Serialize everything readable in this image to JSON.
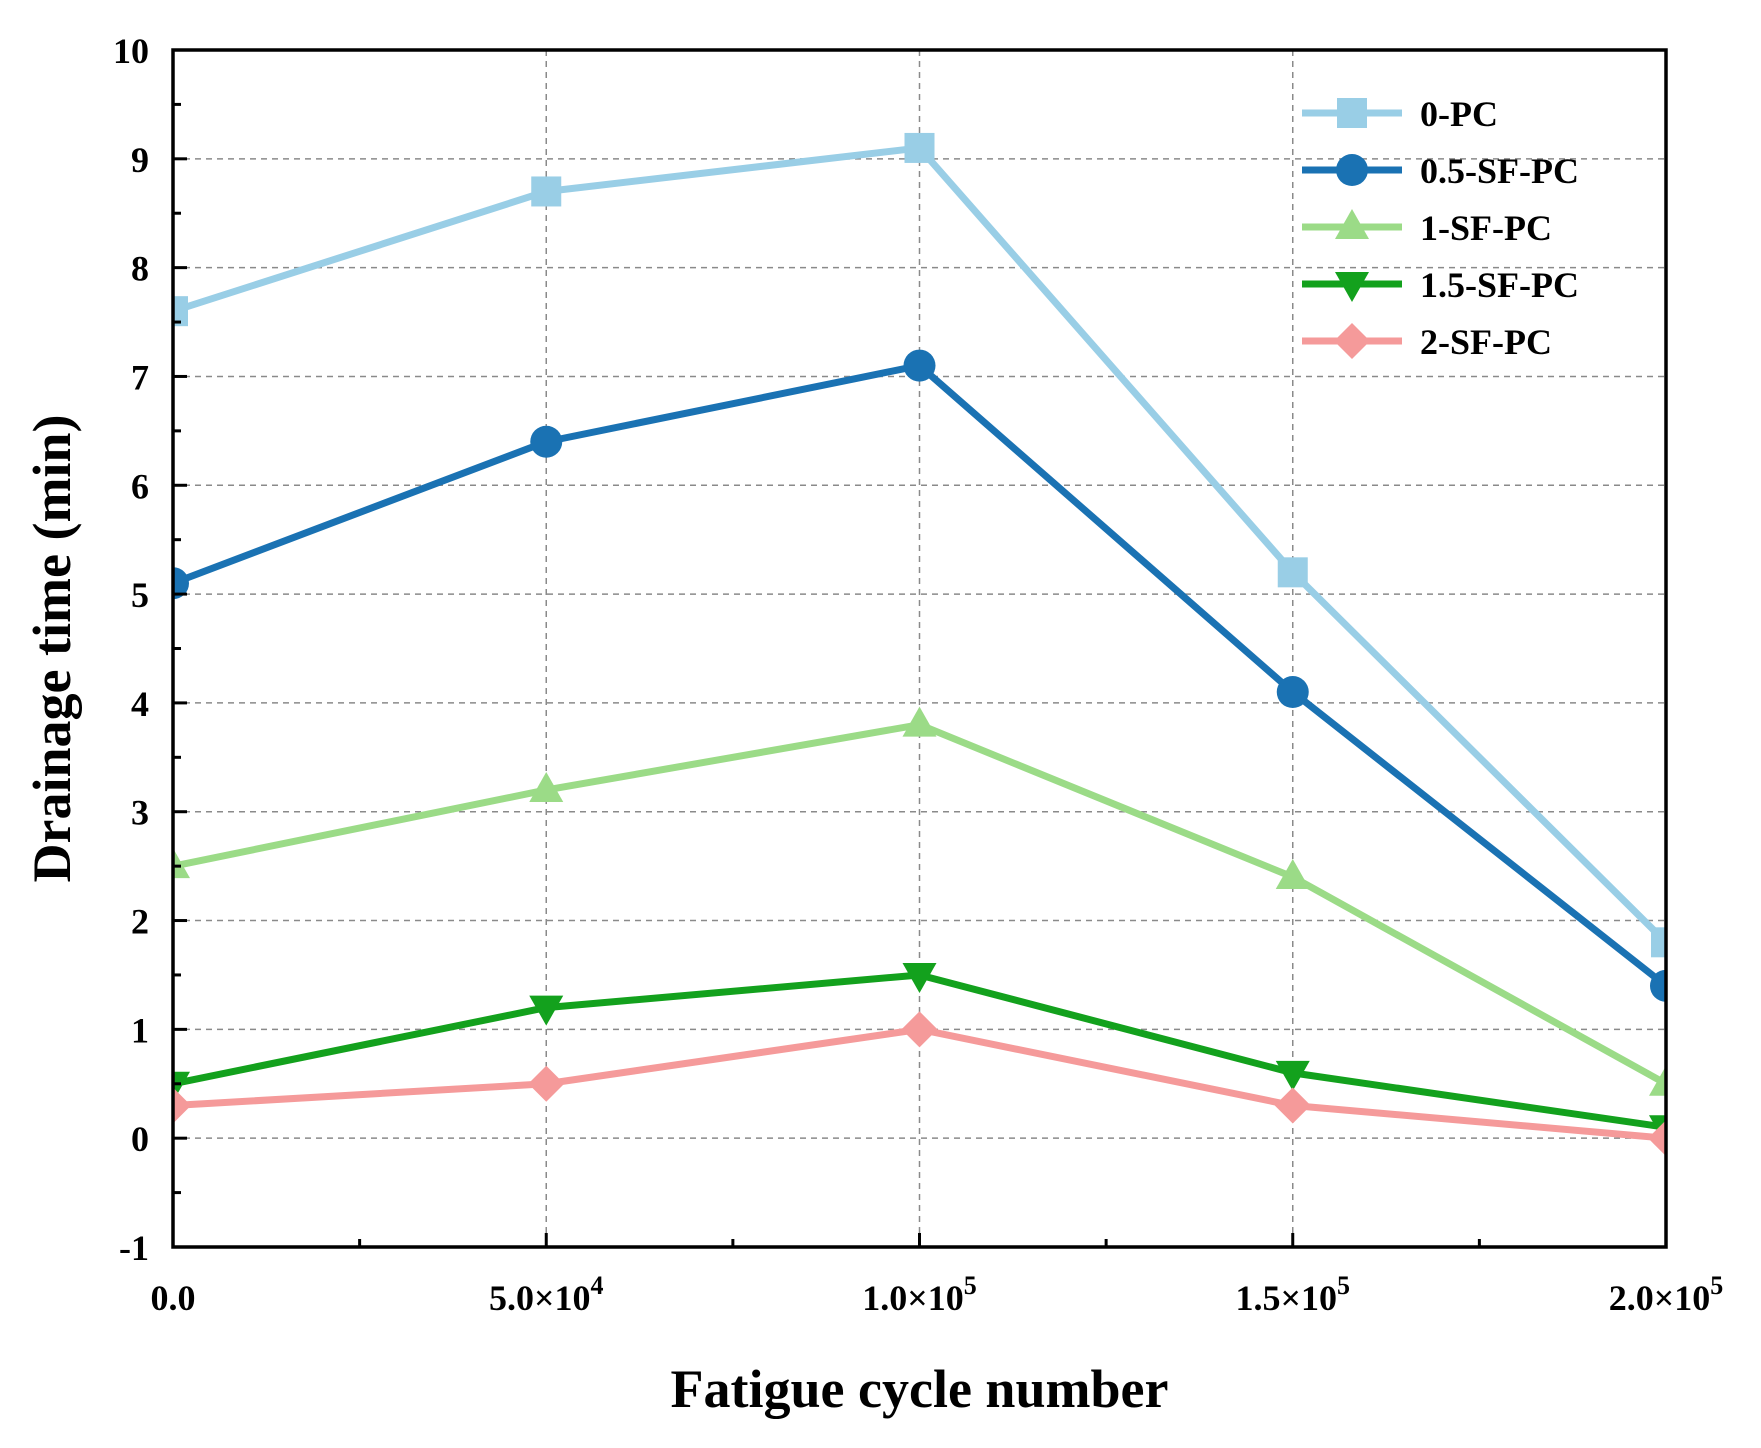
{
  "chart_data": {
    "type": "line",
    "title": "",
    "xlabel": "Fatigue cycle number",
    "ylabel": "Drainage time (min)",
    "x": [
      0,
      50000,
      100000,
      150000,
      200000
    ],
    "xlim": [
      0,
      200000
    ],
    "ylim": [
      -1,
      10
    ],
    "x_ticks": [
      {
        "value": 0,
        "mantissa": "0.0",
        "times": "",
        "exponent": ""
      },
      {
        "value": 50000,
        "mantissa": "5.0",
        "times": "×10",
        "exponent": "4"
      },
      {
        "value": 100000,
        "mantissa": "1.0",
        "times": "×10",
        "exponent": "5"
      },
      {
        "value": 150000,
        "mantissa": "1.5",
        "times": "×10",
        "exponent": "5"
      },
      {
        "value": 200000,
        "mantissa": "2.0",
        "times": "×10",
        "exponent": "5"
      }
    ],
    "y_ticks": [
      "-1",
      "0",
      "1",
      "2",
      "3",
      "4",
      "5",
      "6",
      "7",
      "8",
      "9",
      "10"
    ],
    "grid": true,
    "legend_position": "top-right",
    "series": [
      {
        "name": "0-PC",
        "color": "#99cee6",
        "marker": "square",
        "values": [
          7.6,
          8.7,
          9.1,
          5.2,
          1.8
        ]
      },
      {
        "name": "0.5-SF-PC",
        "color": "#1a72b3",
        "marker": "circle",
        "values": [
          5.1,
          6.4,
          7.1,
          4.1,
          1.4
        ]
      },
      {
        "name": "1-SF-PC",
        "color": "#9bdb87",
        "marker": "triangle-up",
        "values": [
          2.5,
          3.2,
          3.8,
          2.4,
          0.5
        ]
      },
      {
        "name": "1.5-SF-PC",
        "color": "#13a11d",
        "marker": "triangle-down",
        "values": [
          0.5,
          1.2,
          1.5,
          0.6,
          0.1
        ]
      },
      {
        "name": "2-SF-PC",
        "color": "#f59a9a",
        "marker": "diamond",
        "values": [
          0.3,
          0.5,
          1.0,
          0.3,
          0.0
        ]
      }
    ]
  }
}
